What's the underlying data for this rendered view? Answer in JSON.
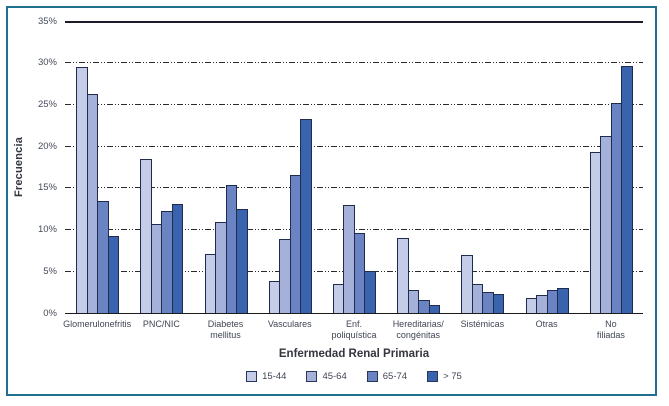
{
  "frame": {
    "border_color": "#20708f",
    "background": "#ffffff"
  },
  "chart_data": {
    "type": "bar",
    "title": "",
    "xlabel": "Enfermedad Renal Primaria",
    "ylabel": "Frecuencia",
    "ylim": [
      0,
      35
    ],
    "grid": "horizontal dashed lines every 5%, solid line at 0% and 35%",
    "legend_position": "bottom",
    "y_ticks": [
      {
        "value": 0,
        "label": "0%"
      },
      {
        "value": 5,
        "label": "5%"
      },
      {
        "value": 10,
        "label": "10%"
      },
      {
        "value": 15,
        "label": "15%"
      },
      {
        "value": 20,
        "label": "20%"
      },
      {
        "value": 25,
        "label": "25%"
      },
      {
        "value": 30,
        "label": "30%"
      },
      {
        "value": 35,
        "label": "35%"
      }
    ],
    "categories": [
      "Glomerulonefritis",
      "PNC/NIC",
      "Diabetes\nmellitus",
      "Vasculares",
      "Enf.\npoliquística",
      "Hereditarias/\ncongénitas",
      "Sistémicas",
      "Otras",
      "No\nfiliadas"
    ],
    "series": [
      {
        "name": "15-44",
        "color": "#c5cce7",
        "values": [
          29.5,
          18.4,
          7.1,
          3.8,
          3.5,
          9.0,
          6.9,
          1.8,
          19.3
        ]
      },
      {
        "name": "45-64",
        "color": "#a6b1d9",
        "values": [
          26.3,
          10.7,
          10.9,
          8.9,
          12.9,
          2.8,
          3.5,
          2.1,
          21.2
        ]
      },
      {
        "name": "65-74",
        "color": "#6983c3",
        "values": [
          13.4,
          12.2,
          15.4,
          16.5,
          9.6,
          1.5,
          2.5,
          2.8,
          25.2
        ]
      },
      {
        "name": "> 75",
        "color": "#3a63ae",
        "values": [
          9.2,
          13.1,
          12.5,
          23.3,
          5.0,
          1.0,
          2.3,
          3.0,
          29.6
        ]
      }
    ],
    "bar_border_color": "#1f2c4d"
  }
}
